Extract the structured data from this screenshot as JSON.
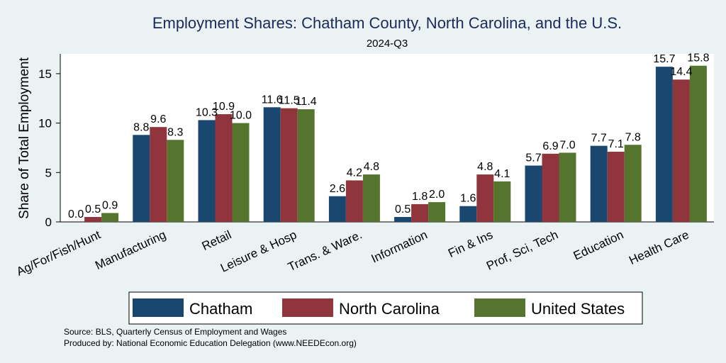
{
  "chart_data": {
    "type": "bar",
    "title": "Employment Shares: Chatham County, North Carolina, and the U.S.",
    "subtitle": "2024-Q3",
    "xlabel": "",
    "ylabel": "Share of Total Employment",
    "ylim": [
      0,
      17
    ],
    "yticks": [
      0,
      5,
      10,
      15
    ],
    "grid": false,
    "legend_position": "bottom",
    "categories": [
      "Ag/For/Fish/Hunt",
      "Manufacturing",
      "Retail",
      "Leisure & Hosp",
      "Trans. & Ware.",
      "Information",
      "Fin & Ins",
      "Prof, Sci, Tech",
      "Education",
      "Health Care"
    ],
    "series": [
      {
        "name": "Chatham",
        "color": "#1a476f",
        "values": [
          0.0,
          8.8,
          10.3,
          11.6,
          2.6,
          0.5,
          1.6,
          5.7,
          7.7,
          15.7
        ],
        "labels": [
          "0.0",
          "8.8",
          "10.3",
          "11.6",
          "2.6",
          "0.5",
          "1.6",
          "5.7",
          "7.7",
          "15.7"
        ]
      },
      {
        "name": "North Carolina",
        "color": "#90353b",
        "values": [
          0.5,
          9.6,
          10.9,
          11.5,
          4.2,
          1.8,
          4.8,
          6.9,
          7.1,
          14.4
        ],
        "labels": [
          "0.5",
          "9.6",
          "10.9",
          "11.5",
          "4.2",
          "1.8",
          "4.8",
          "6.9",
          "7.1",
          "14.4"
        ]
      },
      {
        "name": "United States",
        "color": "#55752f",
        "values": [
          0.9,
          8.3,
          10.0,
          11.4,
          4.8,
          2.0,
          4.1,
          7.0,
          7.8,
          15.8
        ],
        "labels": [
          "0.9",
          "8.3",
          "10.0",
          "11.4",
          "4.8",
          "2.0",
          "4.1",
          "7.0",
          "7.8",
          "15.8"
        ]
      }
    ]
  },
  "notes": {
    "source": "Source: BLS, Quarterly Census of Employment and Wages",
    "produced_by": "Produced by: National Economic Education Delegation (www.NEEDEcon.org)"
  }
}
